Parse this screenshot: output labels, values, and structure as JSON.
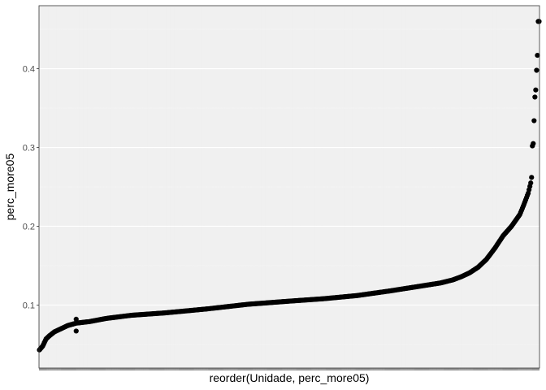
{
  "chart_data": {
    "type": "scatter",
    "xlabel": "reorder(Unidade, perc_more05)",
    "ylabel": "perc_more05",
    "x_tick_labels_visible": false,
    "y_ticks": [
      "0.1",
      "0.2",
      "0.3",
      "0.4"
    ],
    "y_tick_values": [
      0.1,
      0.2,
      0.3,
      0.4
    ],
    "ylim": [
      0.02,
      0.48
    ],
    "grid": true,
    "legend": "none",
    "colors": {
      "panel_background": "#ebebeb",
      "panel_border": "#333333",
      "point": "#000000",
      "grid_major": "#ffffff",
      "grid_minor": "#f5f5f5"
    },
    "curve_profile": [
      [
        0,
        0.043
      ],
      [
        4,
        0.048
      ],
      [
        8,
        0.057
      ],
      [
        12,
        0.061
      ],
      [
        18,
        0.066
      ],
      [
        26,
        0.07
      ],
      [
        34,
        0.074
      ],
      [
        44,
        0.077
      ],
      [
        60,
        0.079
      ],
      [
        80,
        0.083
      ],
      [
        110,
        0.087
      ],
      [
        150,
        0.09
      ],
      [
        200,
        0.095
      ],
      [
        250,
        0.101
      ],
      [
        300,
        0.105
      ],
      [
        340,
        0.108
      ],
      [
        380,
        0.112
      ],
      [
        420,
        0.118
      ],
      [
        450,
        0.123
      ],
      [
        480,
        0.128
      ],
      [
        495,
        0.132
      ],
      [
        505,
        0.136
      ],
      [
        515,
        0.141
      ],
      [
        525,
        0.148
      ],
      [
        535,
        0.158
      ],
      [
        545,
        0.172
      ],
      [
        555,
        0.188
      ],
      [
        565,
        0.2
      ],
      [
        575,
        0.215
      ],
      [
        580,
        0.228
      ],
      [
        585,
        0.242
      ],
      [
        588,
        0.255
      ],
      [
        589,
        0.262
      ]
    ],
    "outliers": [
      {
        "rank": 44,
        "value": 0.082
      },
      {
        "rank": 44,
        "value": 0.067
      },
      {
        "rank": 590,
        "value": 0.302
      },
      {
        "rank": 591,
        "value": 0.305
      },
      {
        "rank": 592,
        "value": 0.334
      },
      {
        "rank": 593,
        "value": 0.364
      },
      {
        "rank": 594,
        "value": 0.373
      },
      {
        "rank": 595,
        "value": 0.398
      },
      {
        "rank": 596,
        "value": 0.417
      },
      {
        "rank": 597,
        "value": 0.46
      },
      {
        "rank": 598,
        "value": 0.46
      }
    ],
    "n_points": 599
  }
}
